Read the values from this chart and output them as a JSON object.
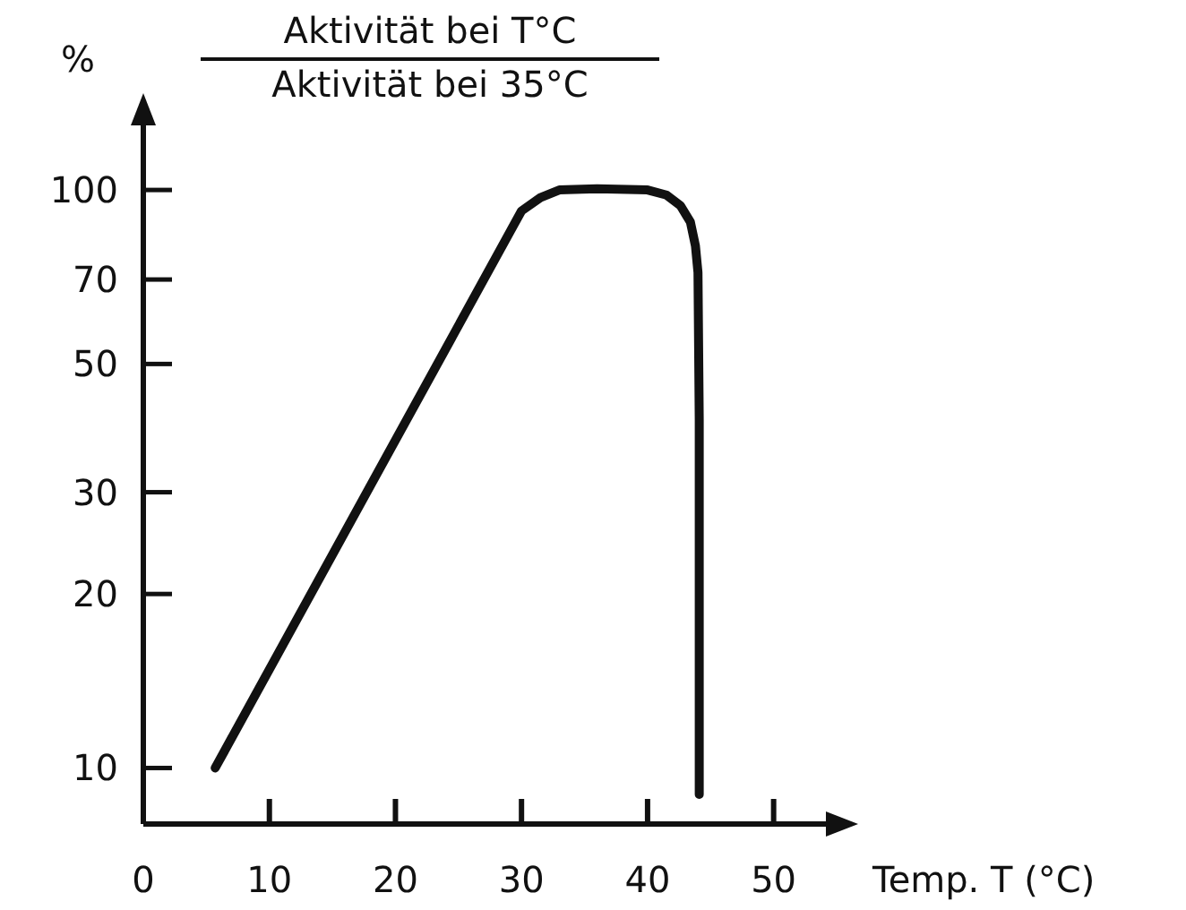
{
  "chart_data": {
    "type": "line",
    "xlabel": "Temp. T (°C)",
    "ylabel": "%",
    "annotations": [
      "Aktivität bei T°C",
      "Aktivität bei 35°C"
    ],
    "x": [
      5.7,
      30,
      31.5,
      33,
      36,
      40,
      41.5,
      42.6,
      43.4,
      43.8,
      44,
      44.1,
      44.1
    ],
    "series": [
      {
        "color": "#111111",
        "values": [
          10,
          92,
          97,
          100,
          100.5,
          100,
          98,
          94,
          88,
          80,
          72,
          40,
          9
        ]
      }
    ],
    "xlim": [
      0,
      55
    ],
    "ylim": [
      8,
      135
    ],
    "log": true,
    "xticks": [
      0,
      10,
      20,
      30,
      40,
      50
    ],
    "yticks": [
      10,
      20,
      30,
      50,
      70,
      100
    ],
    "grid": false,
    "marker": "none",
    "line_style": "solid"
  }
}
